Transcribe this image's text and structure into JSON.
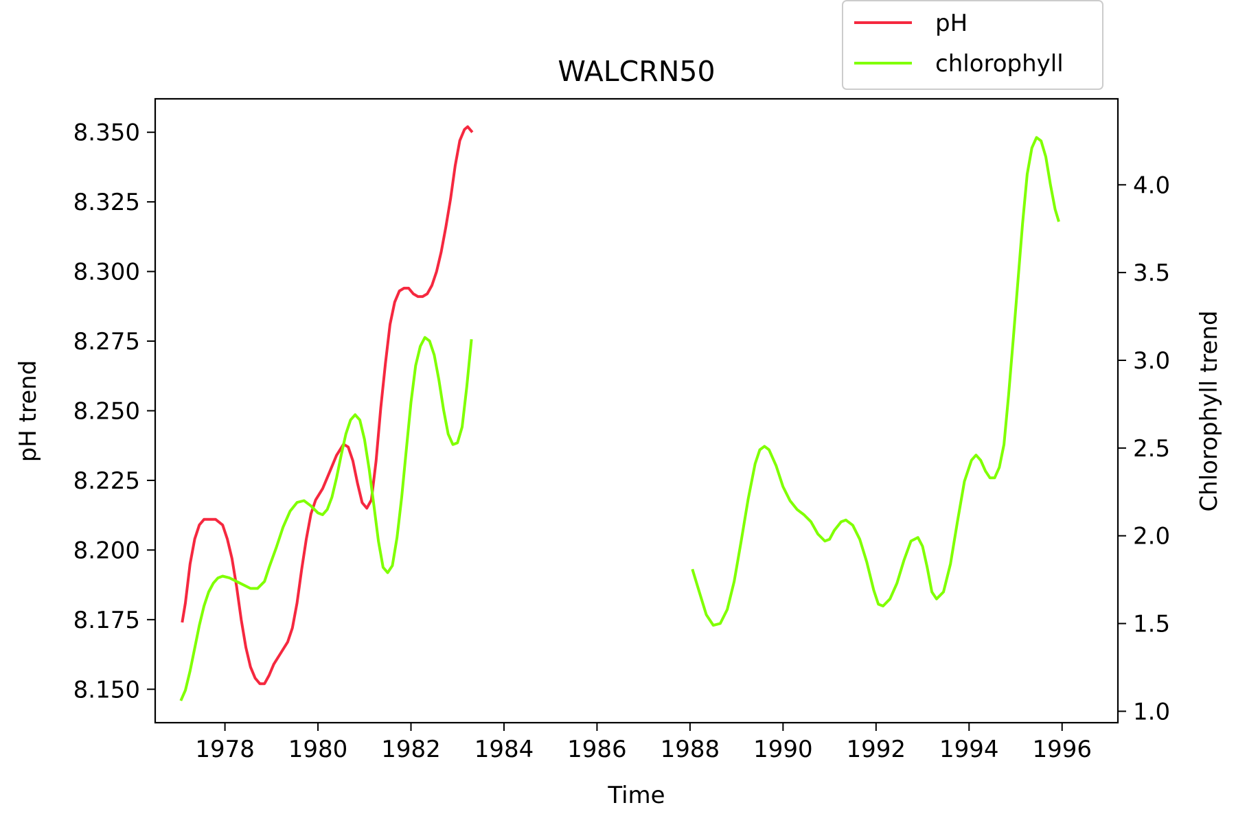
{
  "chart_data": {
    "type": "line",
    "title": "WALCRN50",
    "xlabel": "Time",
    "ylabel": "pH trend",
    "y2label": "Chlorophyll trend",
    "xlim": [
      1976.5,
      1997.2
    ],
    "ylim": [
      8.138,
      8.362
    ],
    "y2lim": [
      0.935,
      4.49
    ],
    "x_ticks": [
      "1978",
      "1980",
      "1982",
      "1984",
      "1986",
      "1988",
      "1990",
      "1992",
      "1994",
      "1996"
    ],
    "y_ticks": [
      "8.150",
      "8.175",
      "8.200",
      "8.225",
      "8.250",
      "8.275",
      "8.300",
      "8.325",
      "8.350"
    ],
    "y2_ticks": [
      "1.0",
      "1.5",
      "2.0",
      "2.5",
      "3.0",
      "3.5",
      "4.0"
    ],
    "grid": false,
    "legend_position": "upper-right-outside",
    "series": [
      {
        "name": "pH",
        "axis": "left",
        "color": "#f5283f",
        "segments": [
          [
            [
              1977.08,
              8.174
            ],
            [
              1977.15,
              8.181
            ],
            [
              1977.25,
              8.195
            ],
            [
              1977.35,
              8.204
            ],
            [
              1977.45,
              8.209
            ],
            [
              1977.55,
              8.211
            ],
            [
              1977.7,
              8.211
            ],
            [
              1977.8,
              8.211
            ],
            [
              1977.95,
              8.209
            ],
            [
              1978.05,
              8.204
            ],
            [
              1978.15,
              8.197
            ],
            [
              1978.25,
              8.187
            ],
            [
              1978.35,
              8.175
            ],
            [
              1978.45,
              8.165
            ],
            [
              1978.55,
              8.158
            ],
            [
              1978.65,
              8.154
            ],
            [
              1978.75,
              8.152
            ],
            [
              1978.85,
              8.152
            ],
            [
              1978.95,
              8.155
            ],
            [
              1979.05,
              8.159
            ],
            [
              1979.2,
              8.163
            ],
            [
              1979.35,
              8.167
            ],
            [
              1979.45,
              8.172
            ],
            [
              1979.55,
              8.181
            ],
            [
              1979.65,
              8.193
            ],
            [
              1979.75,
              8.204
            ],
            [
              1979.85,
              8.213
            ],
            [
              1979.95,
              8.218
            ],
            [
              1980.1,
              8.222
            ],
            [
              1980.25,
              8.228
            ],
            [
              1980.4,
              8.234
            ],
            [
              1980.55,
              8.238
            ],
            [
              1980.65,
              8.237
            ],
            [
              1980.75,
              8.232
            ],
            [
              1980.85,
              8.224
            ],
            [
              1980.95,
              8.217
            ],
            [
              1981.05,
              8.215
            ],
            [
              1981.15,
              8.218
            ],
            [
              1981.25,
              8.232
            ],
            [
              1981.35,
              8.251
            ],
            [
              1981.45,
              8.267
            ],
            [
              1981.55,
              8.281
            ],
            [
              1981.65,
              8.289
            ],
            [
              1981.75,
              8.293
            ],
            [
              1981.85,
              8.294
            ],
            [
              1981.95,
              8.294
            ],
            [
              1982.05,
              8.292
            ],
            [
              1982.15,
              8.291
            ],
            [
              1982.25,
              8.291
            ],
            [
              1982.35,
              8.292
            ],
            [
              1982.45,
              8.295
            ],
            [
              1982.55,
              8.3
            ],
            [
              1982.65,
              8.307
            ],
            [
              1982.75,
              8.316
            ],
            [
              1982.85,
              8.326
            ],
            [
              1982.95,
              8.338
            ],
            [
              1983.05,
              8.347
            ],
            [
              1983.15,
              8.351
            ],
            [
              1983.22,
              8.352
            ],
            [
              1983.32,
              8.35
            ]
          ]
        ]
      },
      {
        "name": "chlorophyll",
        "axis": "right",
        "color": "#80ff00",
        "segments": [
          [
            [
              1977.05,
              1.06
            ],
            [
              1977.15,
              1.12
            ],
            [
              1977.25,
              1.23
            ],
            [
              1977.35,
              1.36
            ],
            [
              1977.45,
              1.49
            ],
            [
              1977.55,
              1.6
            ],
            [
              1977.65,
              1.68
            ],
            [
              1977.75,
              1.73
            ],
            [
              1977.85,
              1.76
            ],
            [
              1977.95,
              1.77
            ],
            [
              1978.1,
              1.76
            ],
            [
              1978.25,
              1.74
            ],
            [
              1978.4,
              1.72
            ],
            [
              1978.55,
              1.7
            ],
            [
              1978.7,
              1.7
            ],
            [
              1978.85,
              1.74
            ],
            [
              1978.95,
              1.82
            ],
            [
              1979.1,
              1.93
            ],
            [
              1979.25,
              2.05
            ],
            [
              1979.4,
              2.14
            ],
            [
              1979.55,
              2.19
            ],
            [
              1979.7,
              2.2
            ],
            [
              1979.85,
              2.17
            ],
            [
              1980.0,
              2.13
            ],
            [
              1980.1,
              2.12
            ],
            [
              1980.2,
              2.15
            ],
            [
              1980.3,
              2.22
            ],
            [
              1980.4,
              2.33
            ],
            [
              1980.5,
              2.46
            ],
            [
              1980.6,
              2.58
            ],
            [
              1980.7,
              2.66
            ],
            [
              1980.8,
              2.69
            ],
            [
              1980.9,
              2.66
            ],
            [
              1981.0,
              2.55
            ],
            [
              1981.1,
              2.38
            ],
            [
              1981.2,
              2.18
            ],
            [
              1981.3,
              1.97
            ],
            [
              1981.4,
              1.82
            ],
            [
              1981.5,
              1.79
            ],
            [
              1981.6,
              1.83
            ],
            [
              1981.7,
              1.99
            ],
            [
              1981.8,
              2.22
            ],
            [
              1981.9,
              2.49
            ],
            [
              1982.0,
              2.76
            ],
            [
              1982.1,
              2.97
            ],
            [
              1982.2,
              3.08
            ],
            [
              1982.3,
              3.13
            ],
            [
              1982.4,
              3.11
            ],
            [
              1982.5,
              3.03
            ],
            [
              1982.6,
              2.89
            ],
            [
              1982.7,
              2.72
            ],
            [
              1982.8,
              2.58
            ],
            [
              1982.9,
              2.52
            ],
            [
              1983.0,
              2.53
            ],
            [
              1983.1,
              2.62
            ],
            [
              1983.2,
              2.85
            ],
            [
              1983.3,
              3.12
            ]
          ],
          [
            [
              1988.05,
              1.81
            ],
            [
              1988.2,
              1.68
            ],
            [
              1988.35,
              1.55
            ],
            [
              1988.5,
              1.49
            ],
            [
              1988.65,
              1.5
            ],
            [
              1988.8,
              1.58
            ],
            [
              1988.95,
              1.74
            ],
            [
              1989.1,
              1.97
            ],
            [
              1989.25,
              2.21
            ],
            [
              1989.4,
              2.41
            ],
            [
              1989.5,
              2.49
            ],
            [
              1989.6,
              2.51
            ],
            [
              1989.7,
              2.49
            ],
            [
              1989.85,
              2.4
            ],
            [
              1990.0,
              2.28
            ],
            [
              1990.15,
              2.2
            ],
            [
              1990.3,
              2.15
            ],
            [
              1990.45,
              2.12
            ],
            [
              1990.6,
              2.08
            ],
            [
              1990.75,
              2.01
            ],
            [
              1990.9,
              1.97
            ],
            [
              1991.0,
              1.98
            ],
            [
              1991.1,
              2.03
            ],
            [
              1991.25,
              2.08
            ],
            [
              1991.35,
              2.09
            ],
            [
              1991.5,
              2.06
            ],
            [
              1991.65,
              1.98
            ],
            [
              1991.8,
              1.85
            ],
            [
              1991.95,
              1.69
            ],
            [
              1992.05,
              1.61
            ],
            [
              1992.15,
              1.6
            ],
            [
              1992.3,
              1.64
            ],
            [
              1992.45,
              1.73
            ],
            [
              1992.6,
              1.86
            ],
            [
              1992.75,
              1.97
            ],
            [
              1992.9,
              1.99
            ],
            [
              1993.0,
              1.94
            ],
            [
              1993.1,
              1.82
            ],
            [
              1993.2,
              1.68
            ],
            [
              1993.3,
              1.64
            ],
            [
              1993.45,
              1.68
            ],
            [
              1993.6,
              1.84
            ],
            [
              1993.75,
              2.08
            ],
            [
              1993.9,
              2.31
            ],
            [
              1994.05,
              2.43
            ],
            [
              1994.15,
              2.46
            ],
            [
              1994.25,
              2.43
            ],
            [
              1994.35,
              2.37
            ],
            [
              1994.45,
              2.33
            ],
            [
              1994.55,
              2.33
            ],
            [
              1994.65,
              2.39
            ],
            [
              1994.75,
              2.52
            ],
            [
              1994.85,
              2.8
            ],
            [
              1994.95,
              3.12
            ],
            [
              1995.05,
              3.45
            ],
            [
              1995.15,
              3.78
            ],
            [
              1995.25,
              4.06
            ],
            [
              1995.35,
              4.21
            ],
            [
              1995.45,
              4.27
            ],
            [
              1995.55,
              4.25
            ],
            [
              1995.65,
              4.16
            ],
            [
              1995.75,
              4.0
            ],
            [
              1995.85,
              3.86
            ],
            [
              1995.93,
              3.79
            ]
          ]
        ]
      }
    ]
  }
}
